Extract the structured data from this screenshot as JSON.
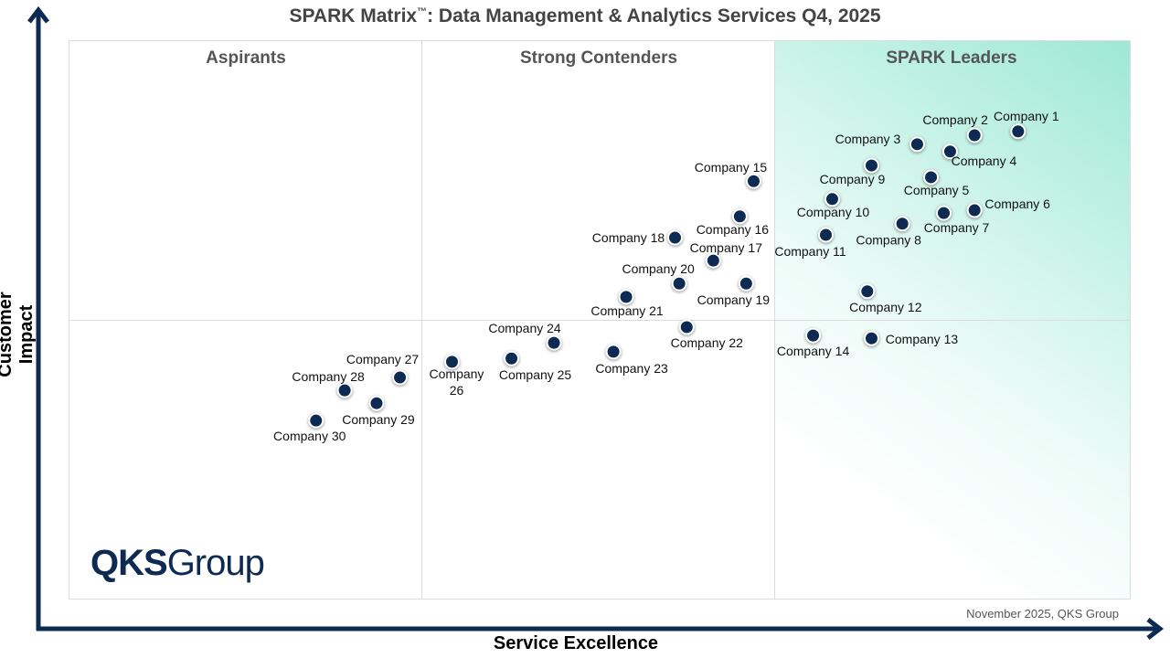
{
  "chart_data": {
    "type": "scatter",
    "title": "SPARK Matrix™: Data Management & Analytics Services Q4, 2025",
    "title_main": "SPARK Matrix",
    "title_tm": "™",
    "title_rest": ": Data Management & Analytics Services Q4, 2025",
    "xlabel": "Service Excellence",
    "ylabel": "Customer Impact",
    "xlim": [
      0,
      100
    ],
    "ylim": [
      0,
      100
    ],
    "quadrants": [
      "Aspirants",
      "Strong Contenders",
      "SPARK Leaders"
    ],
    "points": [
      {
        "label": "Company 1",
        "x": 89.4,
        "y": 83.7
      },
      {
        "label": "Company 2",
        "x": 85.3,
        "y": 83.0
      },
      {
        "label": "Company 3",
        "x": 79.9,
        "y": 81.4
      },
      {
        "label": "Company 4",
        "x": 83.0,
        "y": 80.1
      },
      {
        "label": "Company 5",
        "x": 81.2,
        "y": 75.5
      },
      {
        "label": "Company 6",
        "x": 85.3,
        "y": 69.6
      },
      {
        "label": "Company 7",
        "x": 82.4,
        "y": 69.1
      },
      {
        "label": "Company 8",
        "x": 78.5,
        "y": 67.2
      },
      {
        "label": "Company 9",
        "x": 75.6,
        "y": 77.6
      },
      {
        "label": "Company 10",
        "x": 71.9,
        "y": 71.6
      },
      {
        "label": "Company 11",
        "x": 71.3,
        "y": 65.2
      },
      {
        "label": "Company 12",
        "x": 75.2,
        "y": 55.1
      },
      {
        "label": "Company 13",
        "x": 75.6,
        "y": 46.7
      },
      {
        "label": "Company 14",
        "x": 70.1,
        "y": 47.2
      },
      {
        "label": "Company 15",
        "x": 64.5,
        "y": 74.8
      },
      {
        "label": "Company 16",
        "x": 63.2,
        "y": 68.5
      },
      {
        "label": "Company 17",
        "x": 60.7,
        "y": 60.6
      },
      {
        "label": "Company 18",
        "x": 57.1,
        "y": 64.7
      },
      {
        "label": "Company 19",
        "x": 63.8,
        "y": 56.5
      },
      {
        "label": "Company 20",
        "x": 57.5,
        "y": 56.5
      },
      {
        "label": "Company 21",
        "x": 52.5,
        "y": 54.1
      },
      {
        "label": "Company 22",
        "x": 58.2,
        "y": 48.7
      },
      {
        "label": "Company 23",
        "x": 51.3,
        "y": 44.3
      },
      {
        "label": "Company 24",
        "x": 45.7,
        "y": 45.9
      },
      {
        "label": "Company 25",
        "x": 41.7,
        "y": 43.1
      },
      {
        "label": "Company 26",
        "x": 36.1,
        "y": 42.5
      },
      {
        "label": "Company 27",
        "x": 31.2,
        "y": 39.7
      },
      {
        "label": "Company 28",
        "x": 26.0,
        "y": 37.4
      },
      {
        "label": "Company 29",
        "x": 29.0,
        "y": 35.1
      },
      {
        "label": "Company 30",
        "x": 23.3,
        "y": 32.0
      }
    ],
    "marker_color": "#0c2a52",
    "leader_color": "#9ee8d5"
  },
  "logo": {
    "bold": "QKS",
    "rest": "Group"
  },
  "footnote": "November 2025, QKS Group"
}
